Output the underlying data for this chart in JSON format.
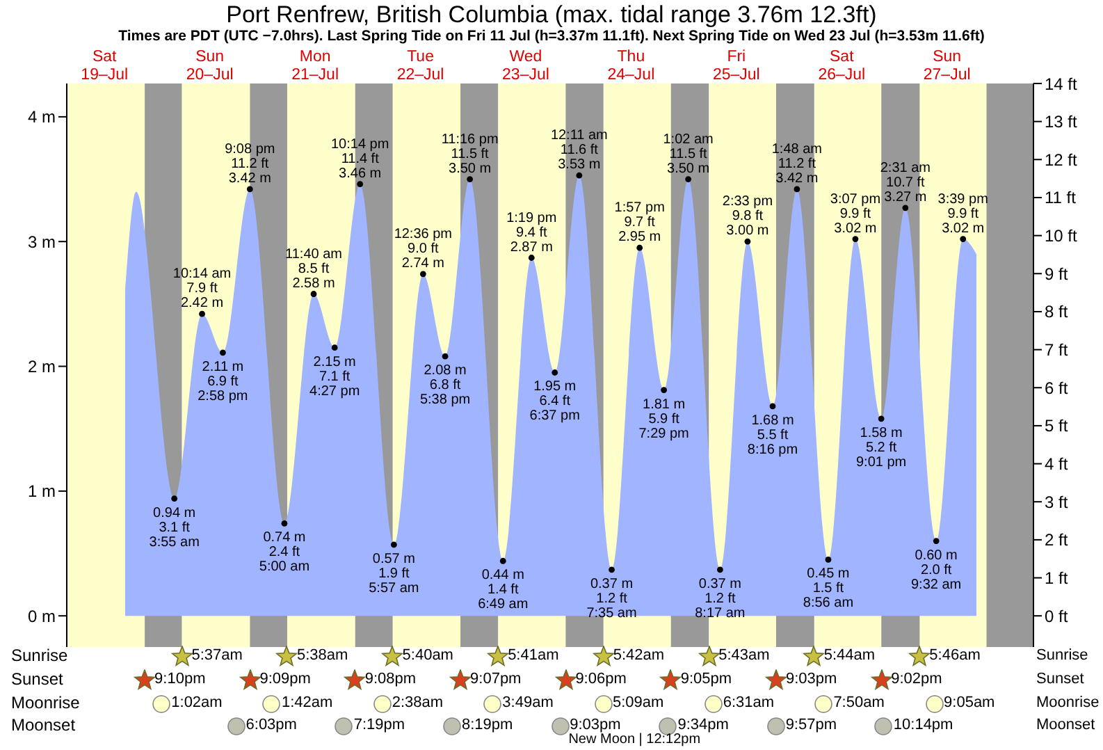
{
  "chart_data": {
    "type": "area",
    "title": "Port Renfrew, British Columbia (max. tidal range 3.76m 12.3ft)",
    "subtitle": "Times are PDT (UTC −7.0hrs). Last Spring Tide on Fri 11 Jul (h=3.37m 11.1ft). Next Spring Tide on Wed 23 Jul (h=3.53m 11.6ft)",
    "color": "#a0b4ff",
    "marker": "circle",
    "x": [
      "--07-19T16:42",
      "--07-19T19:12",
      "--07-20T03:55",
      "--07-20T10:14",
      "--07-20T14:58",
      "--07-20T21:08",
      "--07-21T05:00",
      "--07-21T11:40",
      "--07-21T16:27",
      "--07-21T22:14",
      "--07-22T05:57",
      "--07-22T12:36",
      "--07-22T17:38",
      "--07-22T23:16",
      "--07-23T06:49",
      "--07-23T13:19",
      "--07-23T18:37",
      "--07-24T00:11",
      "--07-24T07:35",
      "--07-24T13:57",
      "--07-24T19:29",
      "--07-25T01:02",
      "--07-25T08:17",
      "--07-25T14:33",
      "--07-25T20:16",
      "--07-26T01:48",
      "--07-26T08:56",
      "--07-26T15:07",
      "--07-26T21:01",
      "--07-27T02:31",
      "--07-27T09:32",
      "--07-27T15:39",
      "--07-27T18:42"
    ],
    "values": [
      2.6,
      3.4,
      0.94,
      2.42,
      2.11,
      3.42,
      0.74,
      2.58,
      2.15,
      3.46,
      0.57,
      2.74,
      2.08,
      3.5,
      0.44,
      2.87,
      1.95,
      3.53,
      0.37,
      2.95,
      1.81,
      3.5,
      0.37,
      3.0,
      1.68,
      3.42,
      0.45,
      3.02,
      1.58,
      3.27,
      0.6,
      3.02,
      2.9
    ],
    "value_labels": [
      null,
      null,
      "0.94 m\n3.1 ft\n3:55 am",
      "10:14 am\n7.9 ft\n2.42 m",
      "2.11 m\n6.9 ft\n2:58 pm",
      "9:08 pm\n11.2 ft\n3.42 m",
      "0.74 m\n2.4 ft\n5:00 am",
      "11:40 am\n8.5 ft\n2.58 m",
      "2.15 m\n7.1 ft\n4:27 pm",
      "10:14 pm\n11.4 ft\n3.46 m",
      "0.57 m\n1.9 ft\n5:57 am",
      "12:36 pm\n9.0 ft\n2.74 m",
      "2.08 m\n6.8 ft\n5:38 pm",
      "11:16 pm\n11.5 ft\n3.50 m",
      "0.44 m\n1.4 ft\n6:49 am",
      "1:19 pm\n9.4 ft\n2.87 m",
      "1.95 m\n6.4 ft\n6:37 pm",
      "12:11 am\n11.6 ft\n3.53 m",
      "0.37 m\n1.2 ft\n7:35 am",
      "1:57 pm\n9.7 ft\n2.95 m",
      "1.81 m\n5.9 ft\n7:29 pm",
      "1:02 am\n11.5 ft\n3.50 m",
      "0.37 m\n1.2 ft\n8:17 am",
      "2:33 pm\n9.8 ft\n3.00 m",
      "1.68 m\n5.5 ft\n8:16 pm",
      "1:48 am\n11.2 ft\n3.42 m",
      "0.45 m\n1.5 ft\n8:56 am",
      "3:07 pm\n9.9 ft\n3.02 m",
      "1.58 m\n5.2 ft\n9:01 pm",
      "2:31 am\n10.7 ft\n3.27 m",
      "0.60 m\n2.0 ft\n9:32 am",
      "3:39 pm\n9.9 ft\n3.02 m",
      null
    ],
    "xlim": [
      "--07-19T03:24",
      "--07-28T07:42"
    ],
    "xticks": [
      {
        "value": "--07-19T12:00",
        "label": "Sat\n19–Jul"
      },
      {
        "value": "--07-20T12:00",
        "label": "Sun\n20–Jul"
      },
      {
        "value": "--07-21T12:00",
        "label": "Mon\n21–Jul"
      },
      {
        "value": "--07-22T12:00",
        "label": "Tue\n22–Jul"
      },
      {
        "value": "--07-23T12:00",
        "label": "Wed\n23–Jul"
      },
      {
        "value": "--07-24T12:00",
        "label": "Thu\n24–Jul"
      },
      {
        "value": "--07-25T12:00",
        "label": "Fri\n25–Jul"
      },
      {
        "value": "--07-26T12:00",
        "label": "Sat\n26–Jul"
      },
      {
        "value": "--07-27T12:00",
        "label": "Sun\n27–Jul"
      }
    ],
    "ylim": [
      -0.25,
      4.267
    ],
    "yticks": [
      {
        "value": 0,
        "label": "0 m"
      },
      {
        "value": 1,
        "label": "1 m"
      },
      {
        "value": 2,
        "label": "2 m"
      },
      {
        "value": 3,
        "label": "3 m"
      },
      {
        "value": 4,
        "label": "4 m"
      }
    ],
    "y2lim": [
      -0.82,
      14
    ],
    "y2ticks": [
      {
        "value": 0,
        "label": "0 ft"
      },
      {
        "value": 1,
        "label": "1 ft"
      },
      {
        "value": 2,
        "label": "2 ft"
      },
      {
        "value": 3,
        "label": "3 ft"
      },
      {
        "value": 4,
        "label": "4 ft"
      },
      {
        "value": 5,
        "label": "5 ft"
      },
      {
        "value": 6,
        "label": "6 ft"
      },
      {
        "value": 7,
        "label": "7 ft"
      },
      {
        "value": 8,
        "label": "8 ft"
      },
      {
        "value": 9,
        "label": "9 ft"
      },
      {
        "value": 10,
        "label": "10 ft"
      },
      {
        "value": 11,
        "label": "11 ft"
      },
      {
        "value": 12,
        "label": "12 ft"
      },
      {
        "value": 13,
        "label": "13 ft"
      },
      {
        "value": 14,
        "label": "14 ft"
      }
    ],
    "bands": [
      {
        "axis": "x",
        "from": "--07-19T03:24",
        "to": "--07-19T21:10",
        "color": "#ffffcc"
      },
      {
        "axis": "x",
        "from": "--07-20T05:37",
        "to": "--07-20T21:09",
        "color": "#ffffcc"
      },
      {
        "axis": "x",
        "from": "--07-21T05:38",
        "to": "--07-21T21:08",
        "color": "#ffffcc"
      },
      {
        "axis": "x",
        "from": "--07-22T05:40",
        "to": "--07-22T21:07",
        "color": "#ffffcc"
      },
      {
        "axis": "x",
        "from": "--07-23T05:41",
        "to": "--07-23T21:06",
        "color": "#ffffcc"
      },
      {
        "axis": "x",
        "from": "--07-24T05:42",
        "to": "--07-24T21:05",
        "color": "#ffffcc"
      },
      {
        "axis": "x",
        "from": "--07-25T05:43",
        "to": "--07-25T21:03",
        "color": "#ffffcc"
      },
      {
        "axis": "x",
        "from": "--07-26T05:44",
        "to": "--07-26T21:02",
        "color": "#ffffcc"
      },
      {
        "axis": "x",
        "from": "--07-27T05:46",
        "to": "--07-27T21:00",
        "color": "#ffffcc"
      },
      {
        "axis": "x",
        "from": "--07-19T21:10",
        "to": "--07-20T05:37",
        "color": "#999999"
      },
      {
        "axis": "x",
        "from": "--07-20T21:09",
        "to": "--07-21T05:38",
        "color": "#999999"
      },
      {
        "axis": "x",
        "from": "--07-21T21:08",
        "to": "--07-22T05:40",
        "color": "#999999"
      },
      {
        "axis": "x",
        "from": "--07-22T21:07",
        "to": "--07-23T05:41",
        "color": "#999999"
      },
      {
        "axis": "x",
        "from": "--07-23T21:06",
        "to": "--07-24T05:42",
        "color": "#999999"
      },
      {
        "axis": "x",
        "from": "--07-24T21:05",
        "to": "--07-25T05:43",
        "color": "#999999"
      },
      {
        "axis": "x",
        "from": "--07-25T21:03",
        "to": "--07-26T05:44",
        "color": "#999999"
      },
      {
        "axis": "x",
        "from": "--07-26T21:02",
        "to": "--07-27T05:46",
        "color": "#999999"
      },
      {
        "axis": "x",
        "from": "--07-27T21:00",
        "to": "--07-28T07:42",
        "color": "#999999"
      }
    ],
    "annotations": [
      "Sunrise",
      {
        "text": "5:37am",
        "x": "--07-20T05:37"
      },
      {
        "text": "5:38am",
        "x": "--07-21T05:38"
      },
      {
        "text": "5:40am",
        "x": "--07-22T05:40"
      },
      {
        "text": "5:41am",
        "x": "--07-23T05:41"
      },
      {
        "text": "5:42am",
        "x": "--07-24T05:42"
      },
      {
        "text": "5:43am",
        "x": "--07-25T05:43"
      },
      {
        "text": "5:44am",
        "x": "--07-26T05:44"
      },
      {
        "text": "5:46am",
        "x": "--07-27T05:46"
      },
      "Sunset",
      {
        "text": "9:10pm"
      },
      {
        "text": "9:09pm"
      },
      {
        "text": "9:08pm"
      },
      {
        "text": "9:07pm"
      },
      {
        "text": "9:06pm"
      },
      {
        "text": "9:05pm"
      },
      {
        "text": "9:03pm"
      },
      {
        "text": "9:02pm"
      },
      "Moonrise",
      {
        "text": "1:02am"
      },
      {
        "text": "1:42am"
      },
      {
        "text": "2:38am"
      },
      {
        "text": "3:49am"
      },
      {
        "text": "5:09am"
      },
      {
        "text": "6:31am"
      },
      {
        "text": "7:50am"
      },
      {
        "text": "9:05am"
      },
      "Moonset",
      {
        "text": "6:03pm"
      },
      {
        "text": "7:19pm"
      },
      {
        "text": "8:19pm"
      },
      {
        "text": "9:03pm"
      },
      {
        "text": "9:34pm"
      },
      {
        "text": "9:57pm"
      },
      {
        "text": "10:14pm"
      },
      "New Moon | 12:12pm"
    ]
  }
}
